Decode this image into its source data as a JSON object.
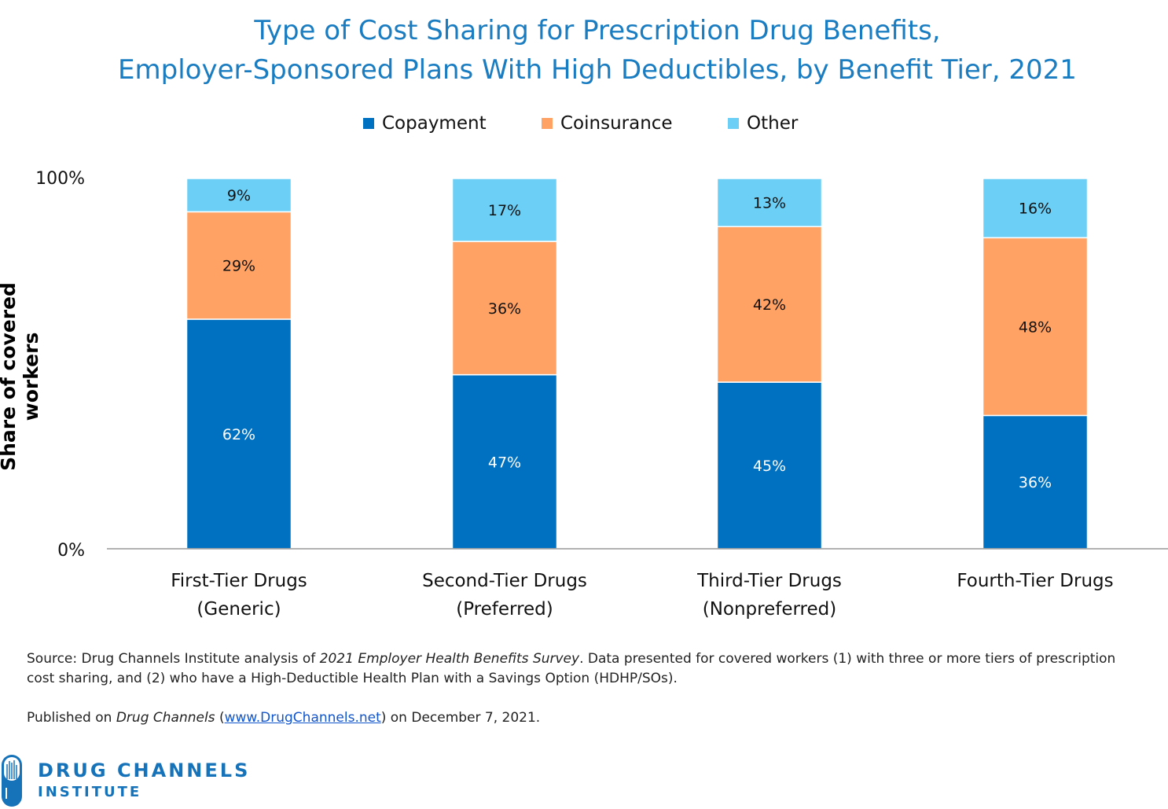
{
  "chart_data": {
    "type": "bar",
    "stacked": true,
    "title_lines": [
      "Type of Cost Sharing for Prescription Drug Benefits,",
      "Employer-Sponsored Plans With High Deductibles, by Benefit Tier, 2021"
    ],
    "ylabel": "Share of covered workers",
    "ylim": [
      0,
      100
    ],
    "yticks": [
      "0%",
      "100%"
    ],
    "categories": [
      [
        "First-Tier Drugs",
        "(Generic)"
      ],
      [
        "Second-Tier Drugs",
        "(Preferred)"
      ],
      [
        "Third-Tier Drugs",
        "(Nonpreferred)"
      ],
      [
        "Fourth-Tier Drugs"
      ]
    ],
    "series": [
      {
        "name": "Copayment",
        "color": "#0070c0",
        "label_color": "#ffffff",
        "values": [
          62,
          47,
          45,
          36
        ]
      },
      {
        "name": "Coinsurance",
        "color": "#ffa264",
        "label_color": "#111111",
        "values": [
          29,
          36,
          42,
          48
        ]
      },
      {
        "name": "Other",
        "color": "#6ccff6",
        "label_color": "#111111",
        "values": [
          9,
          17,
          13,
          16
        ]
      }
    ],
    "legend_position": "top",
    "grid": false
  },
  "notes": {
    "source_prefix": "Source: Drug Channels Institute analysis of ",
    "source_italic": "2021 Employer Health Benefits Survey",
    "source_suffix": ". Data presented for covered workers (1) with three or more tiers of prescription cost sharing, and (2) who have a High-Deductible Health Plan with a Savings Option (HDHP/SOs).",
    "published_prefix": "Published on ",
    "published_italic": "Drug Channels",
    "published_open": " (",
    "published_link": "www.DrugChannels.net",
    "published_suffix": ") on December 7, 2021."
  },
  "logo": {
    "line1": "DRUG CHANNELS",
    "line2": "INSTITUTE"
  }
}
